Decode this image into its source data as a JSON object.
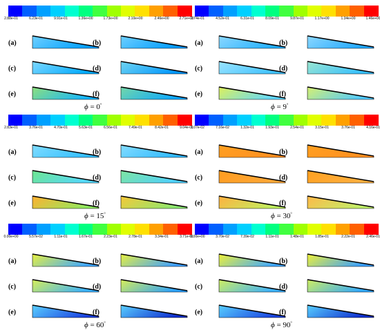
{
  "colorbar_colors": [
    "#0000ff",
    "#0060ff",
    "#00a0ff",
    "#00d0ff",
    "#00ffd0",
    "#00ff80",
    "#40ff40",
    "#a0ff00",
    "#e0ff00",
    "#ffe000",
    "#ffa000",
    "#ff6000",
    "#ff0000"
  ],
  "sublabels": [
    "(a)",
    "(b)",
    "(c)",
    "(d)",
    "(e)",
    "(f)"
  ],
  "panels": [
    {
      "ticks": [
        "2.88e-01",
        "6.23e-01",
        "9.91e-01",
        "1.36e+00",
        "1.73e+00",
        "2.10e+00",
        "2.46e+00",
        "2.71e+00"
      ],
      "phi_symbol": "ϕ",
      "phi_value": "= 0",
      "phi_degree": "°",
      "wedges": [
        [
          "#6fd0ff",
          "#00a0ff"
        ],
        [
          "#6fd0ff",
          "#009cff"
        ],
        [
          "#7ed8ff",
          "#00aaff"
        ],
        [
          "#70d4f0",
          "#0097ff"
        ],
        [
          "#8fe07c",
          "#12b5ff"
        ],
        [
          "#74d8a8",
          "#0aa8ff"
        ]
      ]
    },
    {
      "ticks": [
        "2.74e-01",
        "4.52e-01",
        "6.31e-01",
        "8.09e-01",
        "9.87e-01",
        "1.17e+00",
        "1.34e+00",
        "1.46e+00"
      ],
      "phi_symbol": "ϕ",
      "phi_value": "= 9",
      "phi_degree": "°",
      "wedges": [
        [
          "#8cd8ff",
          "#21b0ff"
        ],
        [
          "#8cd8ff",
          "#20a8ff"
        ],
        [
          "#9be4ff",
          "#3fc2ff"
        ],
        [
          "#9be6d0",
          "#36c0ff"
        ],
        [
          "#dff05a",
          "#5fd8ff"
        ],
        [
          "#d8f070",
          "#4fcaff"
        ]
      ]
    },
    {
      "ticks": [
        "2.83e-01",
        "3.76e-01",
        "4.70e-01",
        "5.63e-01",
        "6.56e-01",
        "7.49e-01",
        "8.42e-01",
        "9.04e-01"
      ],
      "phi_symbol": "ϕ",
      "phi_value": "= 15",
      "phi_degree": "°",
      "wedges": [
        [
          "#7fdcff",
          "#33bfff"
        ],
        [
          "#83dcff",
          "#30baff"
        ],
        [
          "#6fe690",
          "#54d8ff"
        ],
        [
          "#7fe6a0",
          "#4ed0ff"
        ],
        [
          "#ffb030",
          "#8eea60"
        ],
        [
          "#f7c838",
          "#8ae870"
        ]
      ]
    },
    {
      "ticks": [
        "1.07e-02",
        "7.16e-02",
        "1.32e-01",
        "1.93e-01",
        "2.54e-01",
        "3.15e-01",
        "3.76e-01",
        "4.16e-01"
      ],
      "phi_symbol": "ϕ",
      "phi_value": "= 30",
      "phi_degree": "°",
      "wedges": [
        [
          "#ffa020",
          "#ff9020"
        ],
        [
          "#ffa020",
          "#ff9020"
        ],
        [
          "#ff9c20",
          "#ffa838"
        ],
        [
          "#ffa020",
          "#ffb040"
        ],
        [
          "#ffb040",
          "#bff060"
        ],
        [
          "#ffb848",
          "#bff06a"
        ]
      ]
    },
    {
      "ticks": [
        "0.00e+00",
        "5.57e-02",
        "1.11e-01",
        "1.67e-01",
        "2.23e-01",
        "2.78e-01",
        "3.34e-01",
        "3.71e-01"
      ],
      "phi_symbol": "ϕ",
      "phi_value": "= 60",
      "phi_degree": "°",
      "wedges": [
        [
          "#e8f040",
          "#40a8ff"
        ],
        [
          "#e8f040",
          "#3fa0ff"
        ],
        [
          "#d8ee58",
          "#38b0ff"
        ],
        [
          "#d8ee58",
          "#2aa0ff"
        ],
        [
          "#5ad0ff",
          "#1a40e0"
        ],
        [
          "#5ad0ff",
          "#1030d0"
        ]
      ]
    },
    {
      "ticks": [
        "0.00e+00",
        "3.70e-02",
        "7.39e-02",
        "1.11e-01",
        "1.48e-01",
        "1.85e-01",
        "2.22e-01",
        "2.46e-01"
      ],
      "phi_symbol": "ϕ",
      "phi_value": "= 90",
      "phi_degree": "°",
      "wedges": [
        [
          "#f0f038",
          "#40a8ff"
        ],
        [
          "#f0f038",
          "#3aa0ff"
        ],
        [
          "#d0ee60",
          "#3ab0ff"
        ],
        [
          "#d0ee60",
          "#30a8ff"
        ],
        [
          "#58d0ff",
          "#1a44e0"
        ],
        [
          "#58d0ff",
          "#1030d0"
        ]
      ]
    }
  ]
}
